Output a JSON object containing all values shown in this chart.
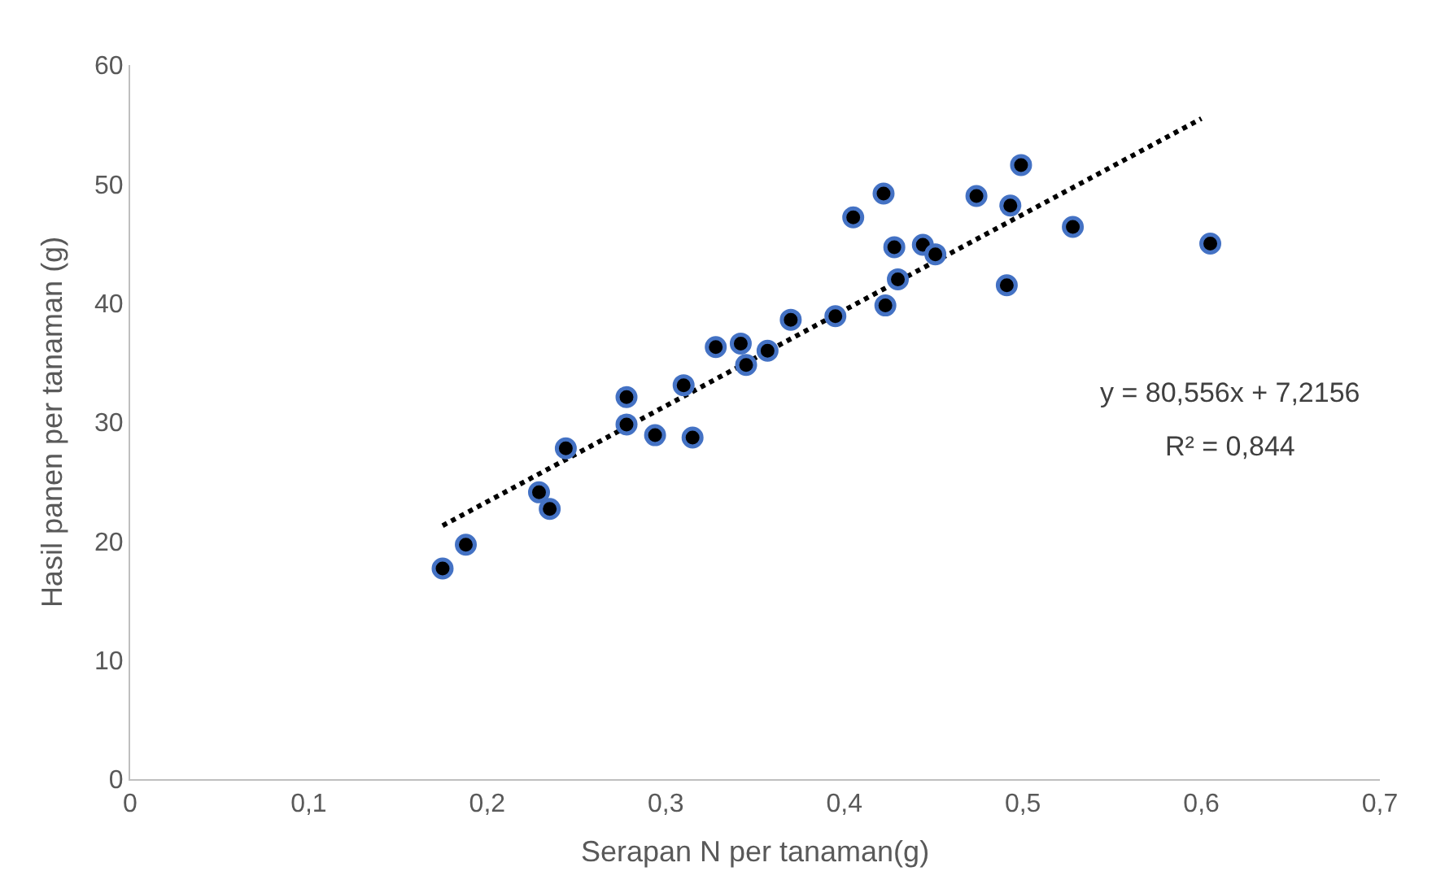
{
  "chart_data": {
    "type": "scatter",
    "xlabel": "Serapan N per tanaman(g)",
    "ylabel": "Hasil panen per tanaman (g)",
    "xlim": [
      0,
      0.7
    ],
    "xticks": [
      0,
      {
        "value": 0.1,
        "label": "0,1"
      },
      {
        "value": 0.2,
        "label": "0,2"
      },
      {
        "value": 0.3,
        "label": "0,3"
      },
      {
        "value": 0.4,
        "label": "0,4"
      },
      {
        "value": 0.5,
        "label": "0,5"
      },
      {
        "value": 0.6,
        "label": "0,6"
      },
      {
        "value": 0.7,
        "label": "0,7"
      }
    ],
    "ylim": [
      0,
      60
    ],
    "yticks": [
      0,
      10,
      20,
      30,
      40,
      50,
      60
    ],
    "grid": false,
    "legend": false,
    "series": [
      {
        "marker": "circle",
        "color": "#000000",
        "x": [
          0.175,
          0.188,
          0.229,
          0.235,
          0.244,
          0.278,
          0.278,
          0.294,
          0.315,
          0.31,
          0.328,
          0.342,
          0.345,
          0.357,
          0.37,
          0.395,
          0.405,
          0.422,
          0.428,
          0.43,
          0.423,
          0.444,
          0.451,
          0.474,
          0.499,
          0.493,
          0.491,
          0.528,
          0.605
        ],
        "values": [
          17.7,
          19.7,
          24.1,
          22.7,
          27.8,
          32.1,
          29.8,
          28.9,
          28.7,
          33.1,
          36.3,
          36.6,
          34.8,
          36,
          38.6,
          38.9,
          47.2,
          49.2,
          44.7,
          42,
          39.8,
          44.9,
          44.1,
          49,
          51.6,
          48.2,
          41.5,
          46.4,
          45
        ]
      },
      {
        "type": "line",
        "marker": "none",
        "color": "#000000",
        "line_style": "dotted",
        "x": [
          0.175,
          0.6
        ],
        "values": [
          21.3,
          55.5
        ]
      }
    ],
    "annotations": [
      "y = 80,556x + 7,2156",
      "R² = 0,844"
    ]
  }
}
